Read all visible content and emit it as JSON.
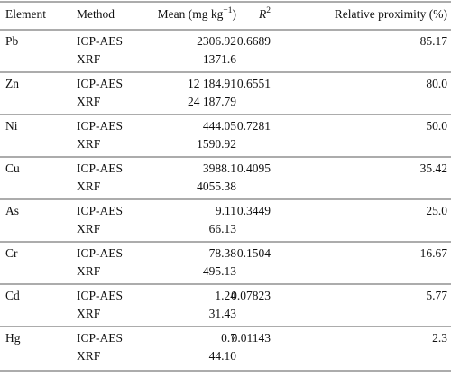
{
  "table": {
    "header": [
      {
        "text": "Element"
      },
      {
        "text": "Method"
      },
      {
        "text": "Mean (mg kg",
        "sup": "−1",
        "tail": ")"
      },
      {
        "text": "R",
        "sup": "2"
      },
      {
        "text": "Relative proximity (%)"
      }
    ],
    "rows": [
      {
        "element": "Pb",
        "methods": [
          "ICP-AES",
          "XRF"
        ],
        "mean": [
          "2306.92",
          "1371.6"
        ],
        "r2": "0.6689",
        "proximity": "85.17"
      },
      {
        "element": "Zn",
        "methods": [
          "ICP-AES",
          "XRF"
        ],
        "mean": [
          "12 184.91",
          "24 187.79"
        ],
        "r2": "0.6551",
        "proximity": "80.0"
      },
      {
        "element": "Ni",
        "methods": [
          "ICP-AES",
          "XRF"
        ],
        "mean": [
          "444.05",
          "1590.92"
        ],
        "r2": "0.7281",
        "proximity": "50.0"
      },
      {
        "element": "Cu",
        "methods": [
          "ICP-AES",
          "XRF"
        ],
        "mean": [
          "3988.1",
          "4055.38"
        ],
        "r2": "0.4095",
        "proximity": "35.42"
      },
      {
        "element": "As",
        "methods": [
          "ICP-AES",
          "XRF"
        ],
        "mean": [
          "9.11",
          "66.13"
        ],
        "r2": "0.3449",
        "proximity": "25.0"
      },
      {
        "element": "Cr",
        "methods": [
          "ICP-AES",
          "XRF"
        ],
        "mean": [
          "78.38",
          "495.13"
        ],
        "r2": "0.1504",
        "proximity": "16.67"
      },
      {
        "element": "Cd",
        "methods": [
          "ICP-AES",
          "XRF"
        ],
        "mean": [
          "1.24",
          "31.43"
        ],
        "r2": "0.07823",
        "proximity": "5.77"
      },
      {
        "element": "Hg",
        "methods": [
          "ICP-AES",
          "XRF"
        ],
        "mean": [
          "0.7",
          "44.10"
        ],
        "r2": "0.01143",
        "proximity": "2.3"
      }
    ]
  }
}
